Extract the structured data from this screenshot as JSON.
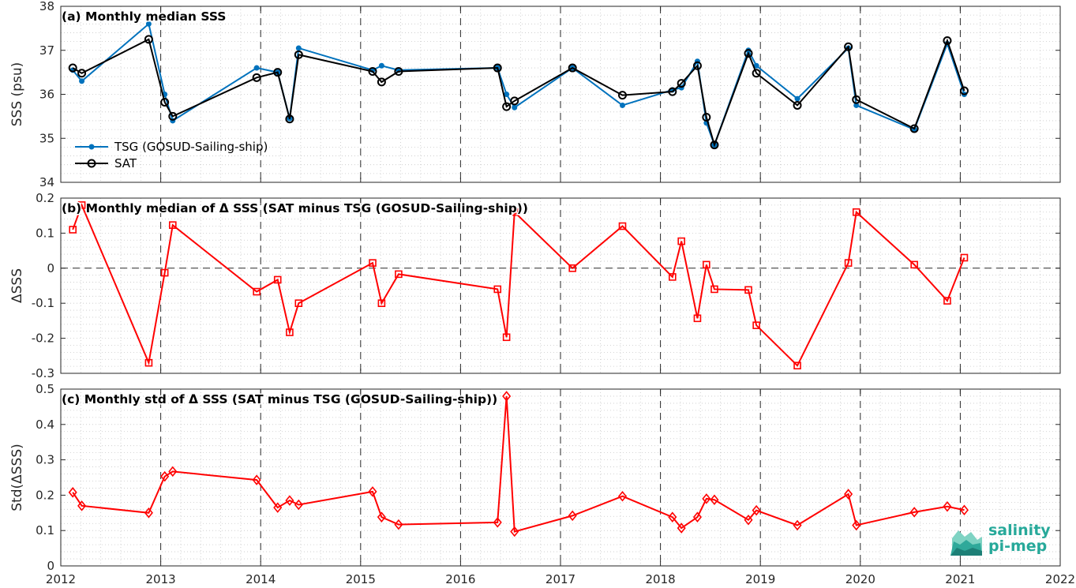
{
  "chart_data": [
    {
      "type": "line",
      "title": "(a) Monthly median SSS",
      "xlabel": "",
      "ylabel": "SSS (psu)",
      "xlim": [
        2012,
        2022
      ],
      "ylim": [
        34,
        38
      ],
      "yticks": [
        34,
        35,
        36,
        37,
        38
      ],
      "legend_position": "bottom-left",
      "series": [
        {
          "name": "TSG (GOSUD-Sailing-ship)",
          "color": "#0072bd",
          "marker": "dot",
          "x": [
            2012.12,
            2012.21,
            2012.88,
            2013.04,
            2013.12,
            2013.96,
            2014.17,
            2014.29,
            2014.38,
            2015.12,
            2015.21,
            2015.38,
            2016.37,
            2016.46,
            2016.54,
            2017.12,
            2017.62,
            2018.12,
            2018.21,
            2018.37,
            2018.46,
            2018.54,
            2018.88,
            2018.96,
            2019.37,
            2019.88,
            2019.96,
            2020.54,
            2020.87,
            2021.04
          ],
          "y": [
            36.55,
            36.3,
            37.6,
            36.0,
            35.4,
            36.6,
            36.5,
            35.45,
            37.05,
            36.55,
            36.65,
            36.55,
            36.6,
            36.0,
            35.7,
            36.6,
            35.75,
            36.1,
            36.15,
            36.75,
            35.35,
            34.85,
            37.0,
            36.65,
            35.9,
            37.05,
            35.75,
            35.2,
            37.15,
            36.0
          ]
        },
        {
          "name": "SAT",
          "color": "#000000",
          "marker": "circle",
          "x": [
            2012.12,
            2012.21,
            2012.88,
            2013.04,
            2013.12,
            2013.96,
            2014.17,
            2014.29,
            2014.38,
            2015.12,
            2015.21,
            2015.38,
            2016.37,
            2016.46,
            2016.54,
            2017.12,
            2017.62,
            2018.12,
            2018.21,
            2018.37,
            2018.46,
            2018.54,
            2018.88,
            2018.96,
            2019.37,
            2019.88,
            2019.96,
            2020.54,
            2020.87,
            2021.04
          ],
          "y": [
            36.6,
            36.48,
            37.25,
            35.82,
            35.5,
            36.38,
            36.5,
            35.44,
            36.9,
            36.52,
            36.28,
            36.52,
            36.6,
            35.72,
            35.85,
            36.6,
            35.98,
            36.06,
            36.25,
            36.65,
            35.48,
            34.85,
            36.93,
            36.48,
            35.75,
            37.08,
            35.88,
            35.22,
            37.22,
            36.08
          ]
        }
      ]
    },
    {
      "type": "line",
      "title": "(b) Monthly median of Δ SSS (SAT minus TSG (GOSUD-Sailing-ship))",
      "xlabel": "",
      "ylabel": "ΔSSS",
      "xlim": [
        2012,
        2022
      ],
      "ylim": [
        -0.3,
        0.2
      ],
      "yticks": [
        -0.3,
        -0.2,
        -0.1,
        0,
        0.1,
        0.2
      ],
      "ytick_labels": [
        "-0.3",
        "-0.2",
        "-0.1",
        "0",
        "0.1",
        "0.2"
      ],
      "zero_line": true,
      "series": [
        {
          "color": "#ff0000",
          "marker": "square",
          "x": [
            2012.12,
            2012.21,
            2012.88,
            2013.04,
            2013.12,
            2013.96,
            2014.17,
            2014.29,
            2014.38,
            2015.12,
            2015.21,
            2015.38,
            2016.37,
            2016.46,
            2016.54,
            2017.12,
            2017.62,
            2018.12,
            2018.21,
            2018.37,
            2018.46,
            2018.54,
            2018.88,
            2018.96,
            2019.37,
            2019.88,
            2019.96,
            2020.54,
            2020.87,
            2021.04
          ],
          "y": [
            0.11,
            0.18,
            -0.27,
            -0.013,
            0.123,
            -0.067,
            -0.033,
            -0.183,
            -0.1,
            0.015,
            -0.1,
            -0.017,
            -0.06,
            -0.197,
            0.16,
            0.0,
            0.12,
            -0.025,
            0.077,
            -0.143,
            0.01,
            -0.06,
            -0.062,
            -0.163,
            -0.278,
            0.015,
            0.16,
            0.01,
            -0.093,
            0.03
          ]
        }
      ]
    },
    {
      "type": "line",
      "title": "(c) Monthly std of Δ SSS (SAT minus TSG (GOSUD-Sailing-ship))",
      "xlabel": "",
      "ylabel": "Std(ΔSSS)",
      "xlim": [
        2012,
        2022
      ],
      "ylim": [
        0,
        0.5
      ],
      "yticks": [
        0,
        0.1,
        0.2,
        0.3,
        0.4,
        0.5
      ],
      "ytick_labels": [
        "0",
        "0.1",
        "0.2",
        "0.3",
        "0.4",
        "0.5"
      ],
      "series": [
        {
          "color": "#ff0000",
          "marker": "diamond",
          "x": [
            2012.12,
            2012.21,
            2012.88,
            2013.04,
            2013.12,
            2013.96,
            2014.17,
            2014.29,
            2014.38,
            2015.12,
            2015.21,
            2015.38,
            2016.37,
            2016.46,
            2016.54,
            2017.12,
            2017.62,
            2018.12,
            2018.21,
            2018.37,
            2018.46,
            2018.54,
            2018.88,
            2018.96,
            2019.37,
            2019.88,
            2019.96,
            2020.54,
            2020.87,
            2021.04
          ],
          "y": [
            0.208,
            0.17,
            0.15,
            0.253,
            0.267,
            0.243,
            0.165,
            0.185,
            0.173,
            0.21,
            0.138,
            0.117,
            0.123,
            0.48,
            0.097,
            0.142,
            0.197,
            0.138,
            0.107,
            0.138,
            0.19,
            0.187,
            0.13,
            0.157,
            0.115,
            0.203,
            0.115,
            0.152,
            0.168,
            0.158
          ]
        }
      ]
    }
  ],
  "x_axis": {
    "ticks": [
      2012,
      2013,
      2014,
      2015,
      2016,
      2017,
      2018,
      2019,
      2020,
      2021,
      2022
    ],
    "tick_labels": [
      "2012",
      "2013",
      "2014",
      "2015",
      "2016",
      "2017",
      "2018",
      "2019",
      "2020",
      "2021",
      "2022"
    ],
    "year_dashed_lines": true
  },
  "grid": true,
  "logo": {
    "line1": "salinity",
    "line2": "pi-mep",
    "color": "#27a99a"
  }
}
